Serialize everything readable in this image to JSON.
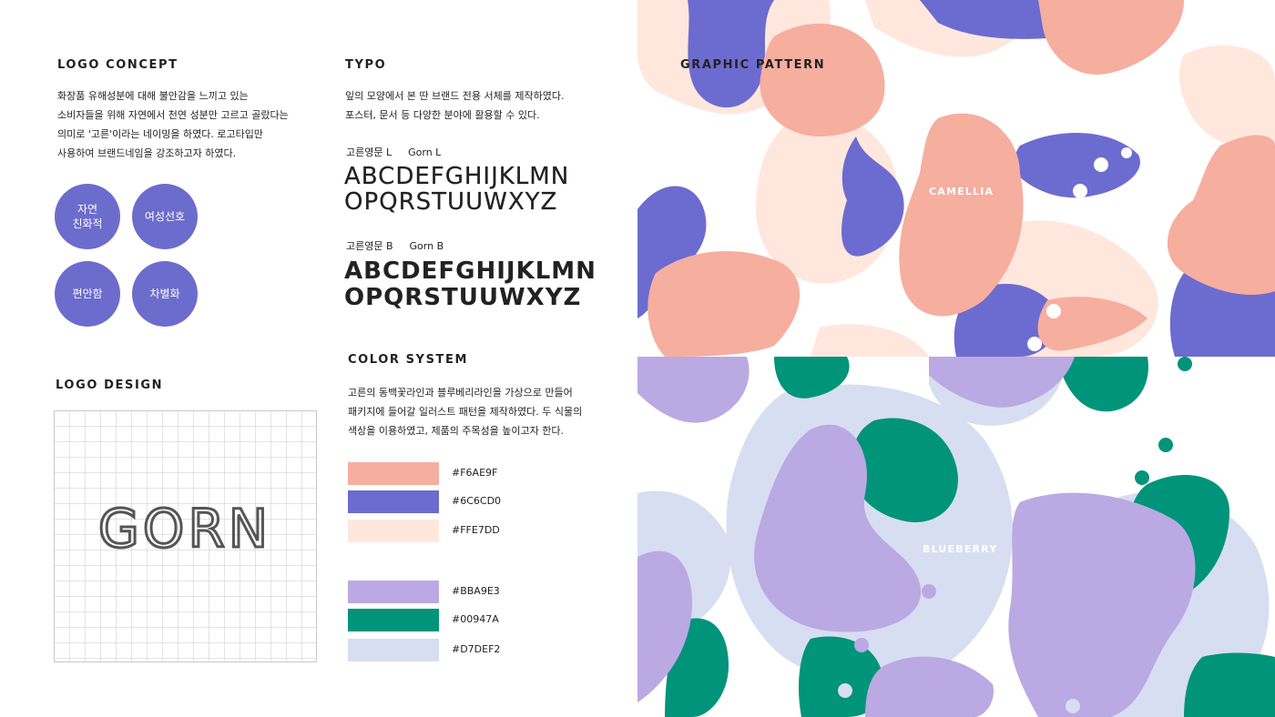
{
  "logo_concept": {
    "heading": "LOGO CONCEPT",
    "body": "  화장품 유해성분에 대해 불안감을 느끼고 있는\n소비자들을 위해 자연에서 천연 성분만 고르고 골랐다는\n의미로 '고른'이라는 네이밍을 하였다. 로고타입만\n사용하여 브랜드네임을 강조하고자 하였다.",
    "keywords": [
      "자연\n친화적",
      "여성선호",
      "편안함",
      "차별화"
    ]
  },
  "logo_design": {
    "heading": "LOGO DESIGN",
    "logotype": "GORN"
  },
  "typo": {
    "heading": "TYPO",
    "body": " 잎의 모양에서 본 딴 브랜드 전용 서체를 제작하였다.\n포스터, 문서 등 다양한 분야에 활용할 수 있다.",
    "font_light": {
      "label_ko": "고른영문 L",
      "label_en": "Gorn L",
      "line1": "ABCDEFGHIJKLMN",
      "line2": "OPQRSTUUWXYZ"
    },
    "font_bold": {
      "label_ko": "고른영문 B",
      "label_en": "Gorn B",
      "line1": "ABCDEFGHIJKLMN",
      "line2": "OPQRSTUUWXYZ"
    }
  },
  "color_system": {
    "heading": "COLOR SYSTEM",
    "body": " 고른의 동백꽃라인과 블루베리라인을 가상으로 만들어\n패키지에 들어갈 일러스트 패턴을 제작하였다. 두 식물의\n색상을 이용하였고, 제품의 주목성을 높이고자 한다.",
    "swatches": [
      {
        "hex": "#F6AE9F",
        "color": "#F6AE9F"
      },
      {
        "hex": "#6C6CD0",
        "color": "#6C6CD0"
      },
      {
        "hex": "#FFE7DD",
        "color": "#FFE7DD"
      },
      {
        "hex": "#BBA9E3",
        "color": "#BBA9E3"
      },
      {
        "hex": "#00947A",
        "color": "#00947A"
      },
      {
        "hex": "#D7DEF2",
        "color": "#D7DEF2"
      }
    ]
  },
  "graphic_pattern": {
    "heading": "GRAPHIC PATTERN",
    "camellia_label": "CAMELLIA",
    "blueberry_label": "BLUEBERRY"
  }
}
